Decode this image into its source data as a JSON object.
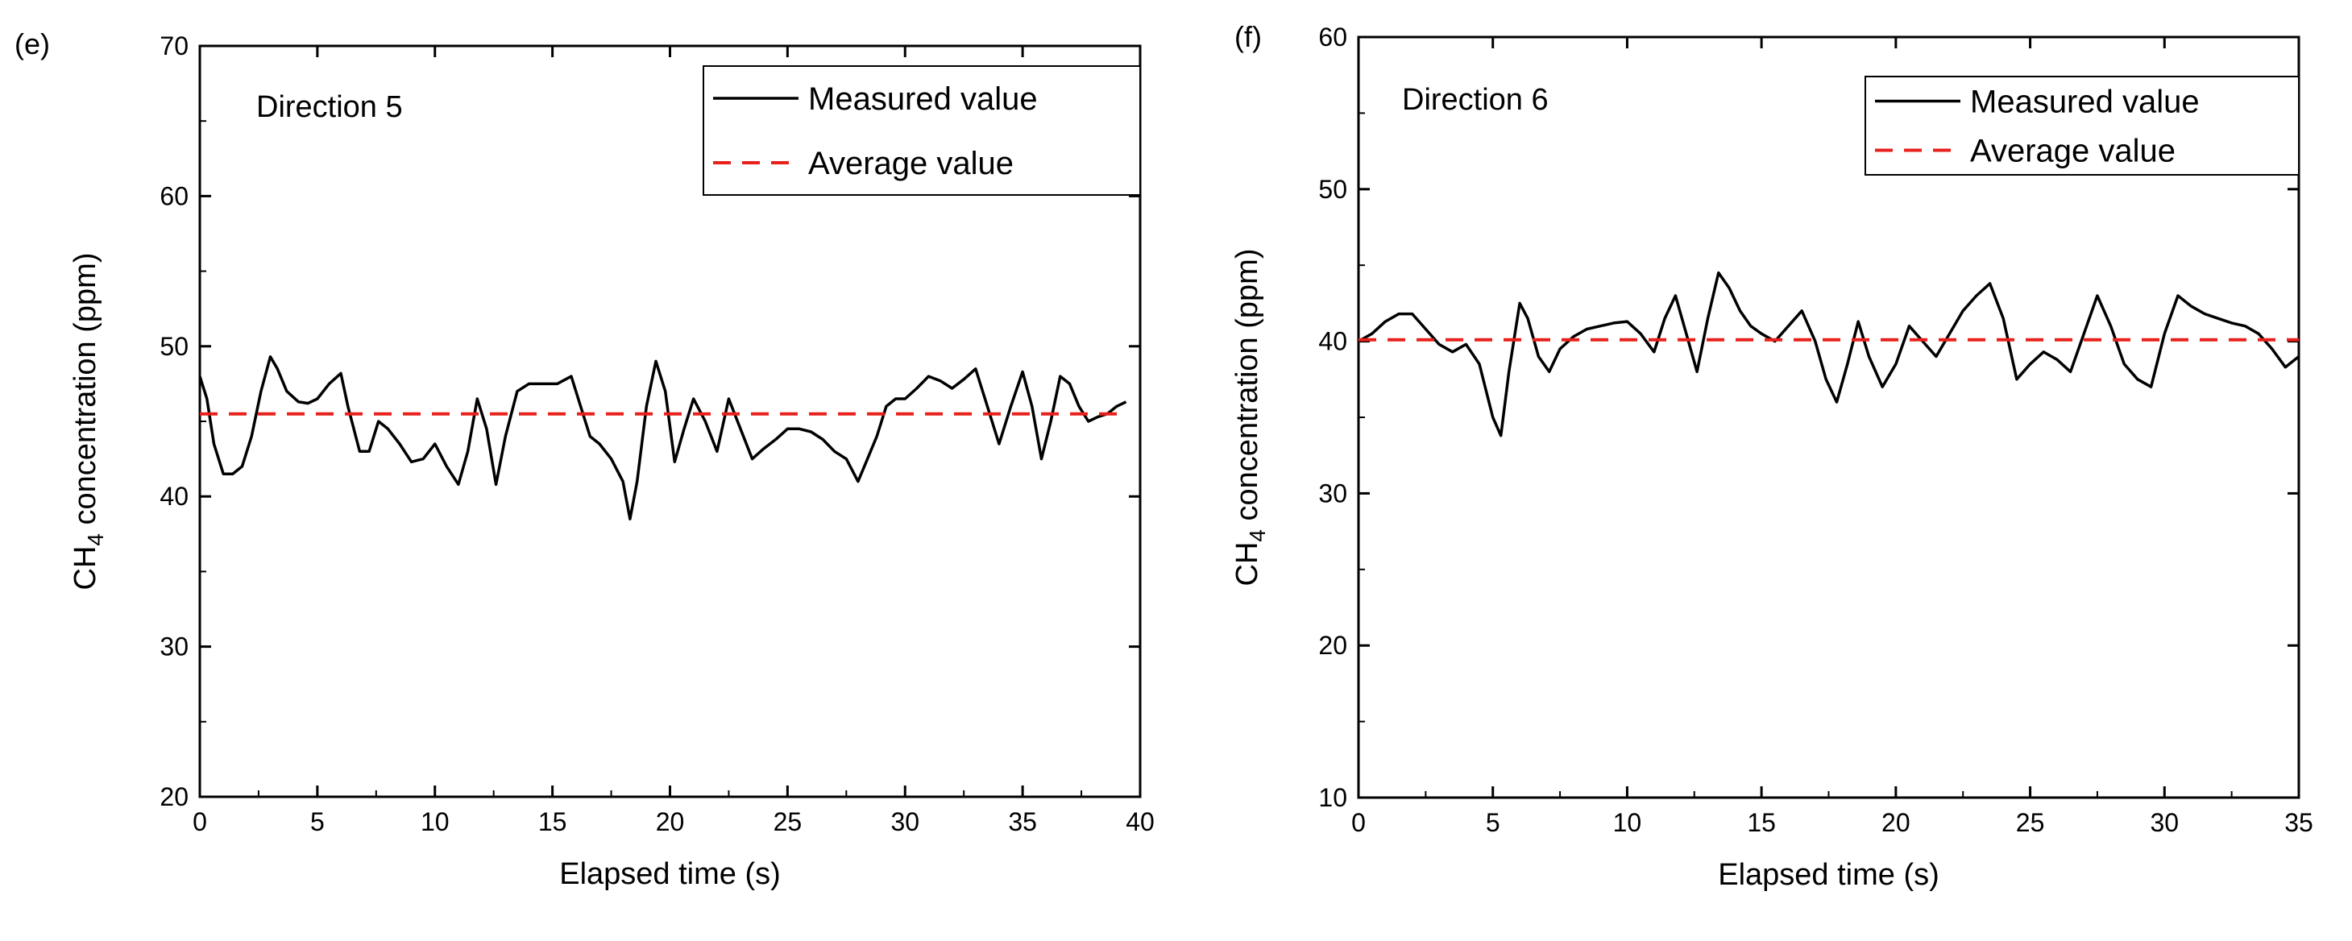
{
  "chart_data": [
    {
      "type": "line",
      "panel_label": "(e)",
      "annotation": "Direction 5",
      "xlabel": "Elapsed time (s)",
      "ylabel_parts": {
        "main": "CH",
        "sub": "4",
        "rest": " concentration (ppm)"
      },
      "xlim": [
        0,
        40
      ],
      "ylim": [
        20,
        70
      ],
      "xticks": [
        0,
        5,
        10,
        15,
        20,
        25,
        30,
        35,
        40
      ],
      "yticks": [
        20,
        30,
        40,
        50,
        60,
        70
      ],
      "legend": {
        "position": "top-right",
        "entries": [
          "Measured value",
          "Average value"
        ]
      },
      "series": [
        {
          "name": "Measured value",
          "color": "#000000",
          "style": "solid",
          "x": [
            0,
            0.3,
            0.6,
            1.0,
            1.4,
            1.8,
            2.2,
            2.6,
            3.0,
            3.3,
            3.7,
            4.2,
            4.6,
            5.0,
            5.5,
            6.0,
            6.3,
            6.8,
            7.2,
            7.6,
            8.0,
            8.5,
            9.0,
            9.5,
            10.0,
            10.5,
            11.0,
            11.4,
            11.8,
            12.2,
            12.6,
            13.0,
            13.5,
            14.0,
            14.6,
            15.2,
            15.8,
            16.2,
            16.6,
            17.0,
            17.5,
            18.0,
            18.3,
            18.6,
            19.0,
            19.4,
            19.8,
            20.2,
            20.6,
            21.0,
            21.5,
            22.0,
            22.5,
            23.0,
            23.5,
            24.0,
            24.5,
            25.0,
            25.5,
            26.0,
            26.5,
            27.0,
            27.5,
            28.0,
            28.4,
            28.8,
            29.2,
            29.6,
            30.0,
            30.5,
            31.0,
            31.5,
            32.0,
            32.5,
            33.0,
            33.5,
            34.0,
            34.5,
            35.0,
            35.4,
            35.8,
            36.2,
            36.6,
            37.0,
            37.4,
            37.8,
            38.2,
            38.6,
            39.0,
            39.4
          ],
          "y": [
            48.0,
            46.5,
            43.5,
            41.5,
            41.5,
            42.0,
            44.0,
            47.0,
            49.3,
            48.5,
            47.0,
            46.3,
            46.2,
            46.5,
            47.5,
            48.2,
            46.0,
            43.0,
            43.0,
            45.0,
            44.5,
            43.5,
            42.3,
            42.5,
            43.5,
            42.0,
            40.8,
            43.0,
            46.5,
            44.5,
            40.8,
            44.0,
            47.0,
            47.5,
            47.5,
            47.5,
            48.0,
            46.0,
            44.0,
            43.5,
            42.5,
            41.0,
            38.5,
            41.0,
            46.0,
            49.0,
            47.0,
            42.3,
            44.5,
            46.5,
            45.0,
            43.0,
            46.5,
            44.5,
            42.5,
            43.2,
            43.8,
            44.5,
            44.5,
            44.3,
            43.8,
            43.0,
            42.5,
            41.0,
            42.5,
            44.0,
            46.0,
            46.5,
            46.5,
            47.2,
            48.0,
            47.7,
            47.2,
            47.8,
            48.5,
            46.0,
            43.5,
            46.0,
            48.3,
            46.0,
            42.5,
            45.0,
            48.0,
            47.5,
            46.0,
            45.0,
            45.3,
            45.5,
            46.0,
            46.3
          ]
        },
        {
          "name": "Average value",
          "color": "#e8201c",
          "style": "dashed",
          "x": [
            0,
            39.4
          ],
          "y": [
            45.5,
            45.5
          ]
        }
      ]
    },
    {
      "type": "line",
      "panel_label": "(f)",
      "annotation": "Direction 6",
      "xlabel": "Elapsed time (s)",
      "ylabel_parts": {
        "main": "CH",
        "sub": "4",
        "rest": " concentration (ppm)"
      },
      "xlim": [
        0,
        35
      ],
      "ylim": [
        10,
        60
      ],
      "xticks": [
        0,
        5,
        10,
        15,
        20,
        25,
        30,
        35
      ],
      "yticks": [
        10,
        20,
        30,
        40,
        50,
        60
      ],
      "legend": {
        "position": "top-right",
        "entries": [
          "Measured value",
          "Average value"
        ]
      },
      "series": [
        {
          "name": "Measured value",
          "color": "#000000",
          "style": "solid",
          "x": [
            0,
            0.5,
            1.0,
            1.5,
            2.0,
            2.5,
            3.0,
            3.5,
            4.0,
            4.5,
            5.0,
            5.3,
            5.6,
            6.0,
            6.3,
            6.7,
            7.1,
            7.5,
            8.0,
            8.5,
            9.0,
            9.5,
            10.0,
            10.5,
            11.0,
            11.4,
            11.8,
            12.2,
            12.6,
            13.0,
            13.4,
            13.8,
            14.2,
            14.6,
            15.0,
            15.5,
            16.0,
            16.5,
            17.0,
            17.4,
            17.8,
            18.2,
            18.6,
            19.0,
            19.5,
            20.0,
            20.5,
            21.0,
            21.5,
            22.0,
            22.5,
            23.0,
            23.5,
            24.0,
            24.5,
            25.0,
            25.5,
            26.0,
            26.5,
            27.0,
            27.5,
            28.0,
            28.5,
            29.0,
            29.5,
            30.0,
            30.5,
            31.0,
            31.5,
            32.0,
            32.5,
            33.0,
            33.5,
            34.0,
            34.5,
            35.0
          ],
          "y": [
            40.0,
            40.5,
            41.3,
            41.8,
            41.8,
            40.8,
            39.8,
            39.3,
            39.8,
            38.5,
            35.0,
            33.8,
            38.0,
            42.5,
            41.5,
            39.0,
            38.0,
            39.5,
            40.3,
            40.8,
            41.0,
            41.2,
            41.3,
            40.5,
            39.3,
            41.5,
            43.0,
            40.5,
            38.0,
            41.5,
            44.5,
            43.5,
            42.0,
            41.0,
            40.5,
            40.0,
            41.0,
            42.0,
            40.0,
            37.5,
            36.0,
            38.5,
            41.3,
            39.0,
            37.0,
            38.5,
            41.0,
            40.0,
            39.0,
            40.5,
            42.0,
            43.0,
            43.8,
            41.5,
            37.5,
            38.5,
            39.3,
            38.8,
            38.0,
            40.5,
            43.0,
            41.0,
            38.5,
            37.5,
            37.0,
            40.5,
            43.0,
            42.3,
            41.8,
            41.5,
            41.2,
            41.0,
            40.5,
            39.5,
            38.3,
            39.0
          ]
        },
        {
          "name": "Average value",
          "color": "#e8201c",
          "style": "dashed",
          "x": [
            0,
            35
          ],
          "y": [
            40.1,
            40.1
          ]
        }
      ]
    }
  ]
}
